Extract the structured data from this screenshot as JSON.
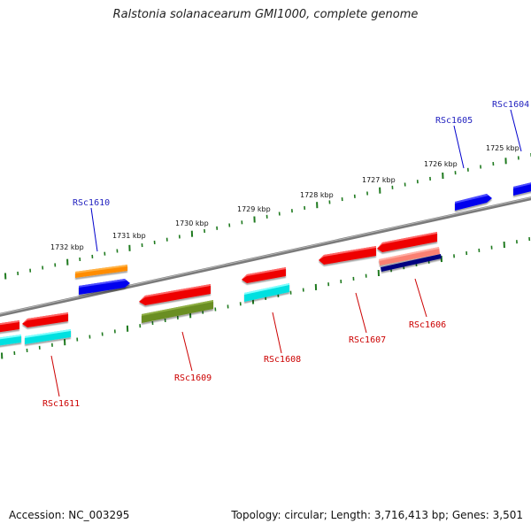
{
  "title": "Ralstonia solanacearum GMI1000, complete genome",
  "footer": {
    "accession": "Accession: NC_003295",
    "stats": "Topology: circular; Length: 3,716,413 bp; Genes: 3,501"
  },
  "colors": {
    "backbone": "#7a7a7a",
    "ticks": "#1f7a1f",
    "forward_label": "#1f1fbf",
    "reverse_label": "#cc0000"
  },
  "kbp_labels": [
    "1732 kbp",
    "1731 kbp",
    "1730 kbp",
    "1729 kbp",
    "1728 kbp",
    "1727 kbp",
    "1726 kbp",
    "1725 kbp"
  ],
  "gene_labels": {
    "forward": [
      "RSc1610",
      "RSc1605",
      "RSc1604"
    ],
    "reverse": [
      "RSc1611",
      "RSc1609",
      "RSc1608",
      "RSc1607",
      "RSc1606"
    ]
  }
}
